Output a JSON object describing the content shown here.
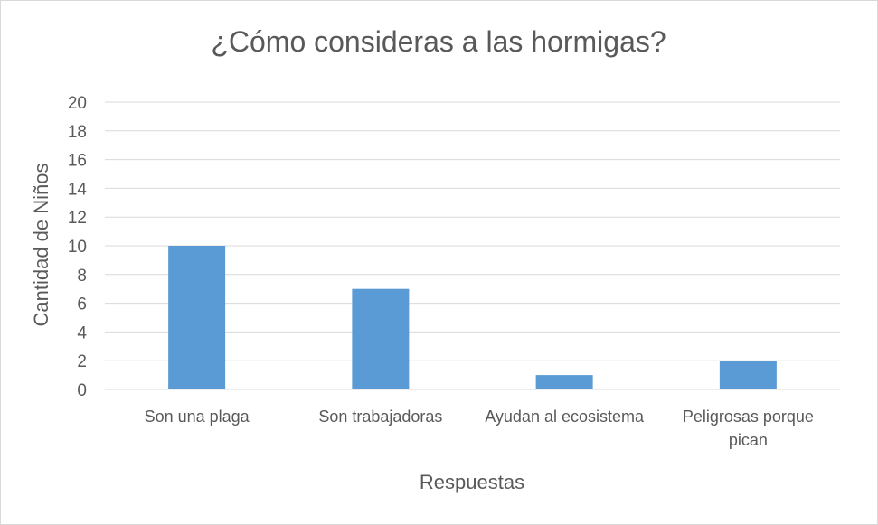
{
  "chart_data": {
    "type": "bar",
    "title": "¿Cómo consideras a las hormigas?",
    "xlabel": "Respuestas",
    "ylabel": "Cantidad de Niños",
    "categories": [
      [
        "Son una plaga"
      ],
      [
        "Son trabajadoras"
      ],
      [
        "Ayudan al ecosistema"
      ],
      [
        "Peligrosas porque",
        "pican"
      ]
    ],
    "values": [
      10,
      7,
      1,
      2
    ],
    "ylim": [
      0,
      20
    ],
    "yticks": [
      0,
      2,
      4,
      6,
      8,
      10,
      12,
      14,
      16,
      18,
      20
    ],
    "grid": true,
    "bar_color": "#5b9bd5",
    "grid_color": "#d9d9d9",
    "text_color": "#595959"
  }
}
